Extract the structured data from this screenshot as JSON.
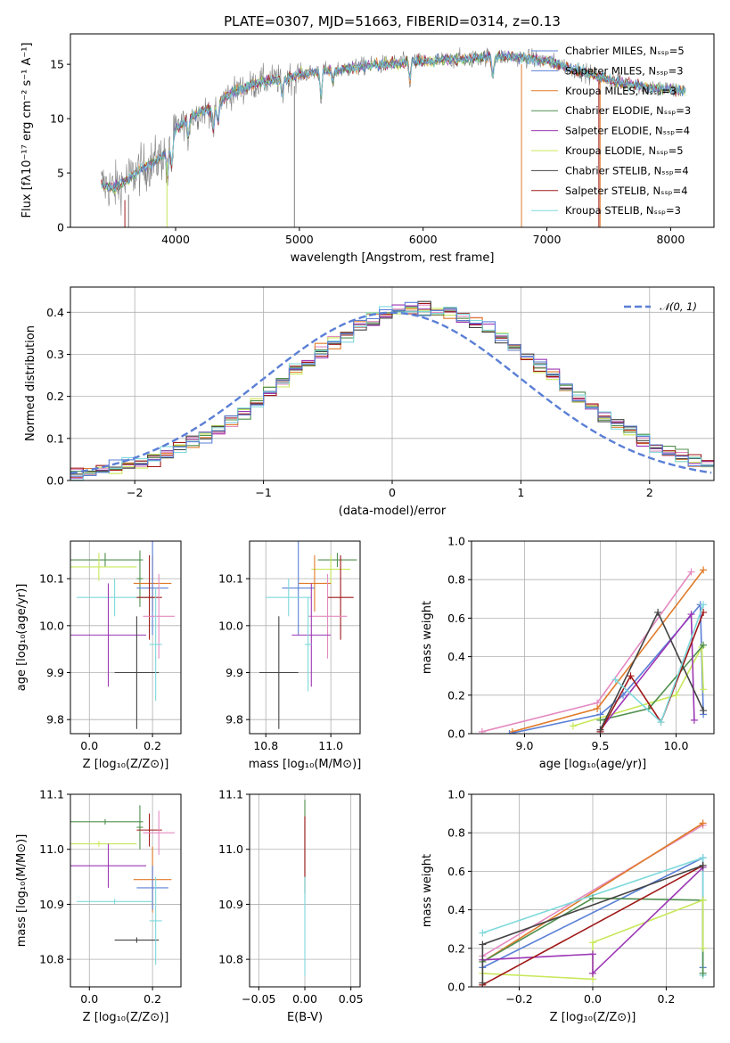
{
  "colors": {
    "blue": "#5a7fd6",
    "orange": "#e07b2a",
    "green": "#4f8f4f",
    "red": "#a01818",
    "purple": "#9c36b5",
    "brown": "#8c5a3c",
    "pink": "#e48ac0",
    "gray": "#7f7f7f",
    "olive": "#c8e85a",
    "cyan": "#7fd9dc",
    "dark": "#444444"
  },
  "chart_data": [
    {
      "id": "spectrum",
      "type": "line",
      "title": "PLATE=0307, MJD=51663, FIBERID=0314, z=0.13",
      "xlabel": "wavelength [Angstrom, rest frame]",
      "ylabel": "Flux [fλ10⁻¹⁷ erg cm⁻² s⁻¹ A⁻¹]",
      "xlim": [
        3150,
        8350
      ],
      "ylim": [
        0,
        17.8
      ],
      "xticks": [
        4000,
        5000,
        6000,
        7000,
        8000
      ],
      "yticks": [
        0,
        5,
        10,
        15
      ],
      "legend_position": "top-right",
      "legend": [
        {
          "label": "Chabrier MILES, Nₛₛₚ=5",
          "color": "#5a7fd6"
        },
        {
          "label": "Salpeter MILES, Nₛₛₚ=3",
          "color": "#5a7fd6"
        },
        {
          "label": "Kroupa MILES, Nₛₛₚ=3",
          "color": "#e07b2a"
        },
        {
          "label": "Chabrier ELODIE, Nₛₛₚ=3",
          "color": "#4f8f4f"
        },
        {
          "label": "Salpeter ELODIE, Nₛₛₚ=4",
          "color": "#9c36b5"
        },
        {
          "label": "Kroupa ELODIE, Nₛₛₚ=5",
          "color": "#c8e85a"
        },
        {
          "label": "Chabrier STELIB, Nₛₛₚ=4",
          "color": "#444444"
        },
        {
          "label": "Salpeter STELIB, Nₛₛₚ=4",
          "color": "#a01818"
        },
        {
          "label": "Kroupa STELIB, Nₛₛₚ=3",
          "color": "#7fd9dc"
        }
      ],
      "continuum": [
        [
          3400,
          4.0
        ],
        [
          3500,
          3.6
        ],
        [
          3600,
          4.3
        ],
        [
          3700,
          5.2
        ],
        [
          3800,
          5.8
        ],
        [
          3900,
          6.6
        ],
        [
          4000,
          9.0
        ],
        [
          4100,
          10.0
        ],
        [
          4200,
          10.6
        ],
        [
          4300,
          11.0
        ],
        [
          4400,
          12.0
        ],
        [
          4500,
          12.6
        ],
        [
          4600,
          13.0
        ],
        [
          4700,
          13.4
        ],
        [
          4800,
          13.6
        ],
        [
          4900,
          13.7
        ],
        [
          5000,
          14.1
        ],
        [
          5100,
          14.2
        ],
        [
          5200,
          14.4
        ],
        [
          5300,
          14.5
        ],
        [
          5400,
          14.6
        ],
        [
          5500,
          14.8
        ],
        [
          5600,
          14.9
        ],
        [
          5700,
          15.0
        ],
        [
          5800,
          15.1
        ],
        [
          5900,
          15.3
        ],
        [
          6000,
          15.2
        ],
        [
          6100,
          15.3
        ],
        [
          6200,
          15.4
        ],
        [
          6300,
          15.5
        ],
        [
          6400,
          15.5
        ],
        [
          6500,
          15.7
        ],
        [
          6600,
          15.7
        ],
        [
          6700,
          15.7
        ],
        [
          6800,
          15.6
        ],
        [
          6900,
          15.5
        ],
        [
          7000,
          15.3
        ],
        [
          7100,
          15.0
        ],
        [
          7200,
          14.6
        ],
        [
          7300,
          14.3
        ],
        [
          7400,
          13.9
        ],
        [
          7500,
          13.6
        ],
        [
          7600,
          13.3
        ],
        [
          7700,
          13.1
        ],
        [
          7800,
          12.9
        ],
        [
          7900,
          12.8
        ],
        [
          8000,
          12.7
        ],
        [
          8100,
          12.6
        ]
      ],
      "absorption_features": [
        [
          3934,
          3.2
        ],
        [
          3969,
          2.9
        ],
        [
          4101,
          1.8
        ],
        [
          4304,
          2.4
        ],
        [
          4341,
          1.8
        ],
        [
          4861,
          1.6
        ],
        [
          5175,
          2.4
        ],
        [
          5270,
          1.2
        ],
        [
          5893,
          1.8
        ],
        [
          6563,
          1.9
        ]
      ]
    },
    {
      "id": "residuals",
      "type": "histogram",
      "xlabel": "(data-model)/error",
      "ylabel": "Normed distribution",
      "xlim": [
        -2.5,
        2.5
      ],
      "ylim": [
        0,
        0.46
      ],
      "xticks": [
        -2,
        -1,
        0,
        1,
        2
      ],
      "yticks": [
        0.0,
        0.1,
        0.2,
        0.3,
        0.4
      ],
      "legend_position": "top-right",
      "legend": [
        {
          "label": "𝒩(0, 1)",
          "color": "#5a7fd6"
        }
      ],
      "bin_width": 0.1
    },
    {
      "id": "age-vs-z",
      "type": "errorbar",
      "xlabel": "Z [log₁₀(Z/Z⊙)]",
      "ylabel": "age  [log₁₀(age/yr)]",
      "xlim": [
        -0.06,
        0.29
      ],
      "ylim": [
        9.77,
        10.18
      ],
      "xticks": [
        0.0,
        0.2
      ],
      "yticks": [
        9.8,
        9.9,
        10.0,
        10.1
      ],
      "points": [
        {
          "color": "#4f8f4f",
          "x": 0.05,
          "xerr": 0.12,
          "y": 10.14,
          "yerr": 0.015
        },
        {
          "color": "#c8e85a",
          "x": 0.03,
          "xerr": 0.12,
          "y": 10.125,
          "yerr": 0.03
        },
        {
          "color": "#4f8f4f",
          "x": 0.16,
          "xerr": 0.01,
          "y": 10.1,
          "yerr": 0.06
        },
        {
          "color": "#e07b2a",
          "x": 0.2,
          "xerr": 0.06,
          "y": 10.09,
          "yerr": 0.06
        },
        {
          "color": "#5a7fd6",
          "x": 0.2,
          "xerr": 0.05,
          "y": 10.08,
          "yerr": 0.1
        },
        {
          "color": "#7fd9dc",
          "x": 0.08,
          "xerr": 0.12,
          "y": 10.06,
          "yerr": 0.04
        },
        {
          "color": "#a01818",
          "x": 0.19,
          "xerr": 0.04,
          "y": 10.06,
          "yerr": 0.09
        },
        {
          "color": "#e48ac0",
          "x": 0.22,
          "xerr": 0.05,
          "y": 10.02,
          "yerr": 0.09
        },
        {
          "color": "#9c36b5",
          "x": 0.06,
          "xerr": 0.12,
          "y": 9.98,
          "yerr": 0.11
        },
        {
          "color": "#444444",
          "x": 0.15,
          "xerr": 0.07,
          "y": 9.9,
          "yerr": 0.12
        },
        {
          "color": "#7fd9dc",
          "x": 0.21,
          "xerr": 0.02,
          "y": 9.96,
          "yerr": 0.12
        }
      ]
    },
    {
      "id": "age-vs-mass",
      "type": "errorbar",
      "xlabel": "mass [log₁₀(M/M⊙)]",
      "ylabel": "",
      "xlim": [
        10.75,
        11.09
      ],
      "ylim": [
        9.77,
        10.18
      ],
      "xticks": [
        10.8,
        11.0
      ],
      "yticks": [
        9.8,
        9.9,
        10.0,
        10.1
      ],
      "points": [
        {
          "color": "#4f8f4f",
          "x": 11.02,
          "xerr": 0.06,
          "y": 10.14,
          "yerr": 0.015
        },
        {
          "color": "#c8e85a",
          "x": 11.0,
          "xerr": 0.06,
          "y": 10.12,
          "yerr": 0.03
        },
        {
          "color": "#e07b2a",
          "x": 10.95,
          "xerr": 0.05,
          "y": 10.09,
          "yerr": 0.06
        },
        {
          "color": "#5a7fd6",
          "x": 10.9,
          "xerr": 0.05,
          "y": 10.08,
          "yerr": 0.1
        },
        {
          "color": "#7fd9dc",
          "x": 10.87,
          "xerr": 0.07,
          "y": 10.06,
          "yerr": 0.04
        },
        {
          "color": "#a01818",
          "x": 11.03,
          "xerr": 0.04,
          "y": 10.06,
          "yerr": 0.09
        },
        {
          "color": "#e48ac0",
          "x": 10.99,
          "xerr": 0.06,
          "y": 10.02,
          "yerr": 0.09
        },
        {
          "color": "#9c36b5",
          "x": 10.94,
          "xerr": 0.06,
          "y": 9.98,
          "yerr": 0.11
        },
        {
          "color": "#444444",
          "x": 10.84,
          "xerr": 0.06,
          "y": 9.9,
          "yerr": 0.12
        },
        {
          "color": "#7fd9dc",
          "x": 10.93,
          "xerr": 0.01,
          "y": 9.96,
          "yerr": 0.1
        }
      ]
    },
    {
      "id": "weight-vs-age",
      "type": "line",
      "xlabel": "age  [log₁₀(age/yr)]",
      "ylabel": "mass weight",
      "xlim": [
        8.65,
        10.25
      ],
      "ylim": [
        0,
        1
      ],
      "xticks": [
        9.0,
        9.5,
        10.0
      ],
      "yticks": [
        0.0,
        0.2,
        0.4,
        0.6,
        0.8,
        1.0
      ],
      "grid": true,
      "series": [
        {
          "color": "#e48ac0",
          "x": [
            8.72,
            9.48,
            10.1
          ],
          "y": [
            0.01,
            0.16,
            0.84
          ]
        },
        {
          "color": "#e07b2a",
          "x": [
            8.92,
            9.48,
            10.18
          ],
          "y": [
            0.01,
            0.13,
            0.85
          ]
        },
        {
          "color": "#5a7fd6",
          "x": [
            8.9,
            9.5,
            9.65,
            10.16,
            10.18
          ],
          "y": [
            0.0,
            0.1,
            0.2,
            0.67,
            0.1
          ]
        },
        {
          "color": "#c8e85a",
          "x": [
            9.32,
            10.0,
            10.17,
            10.18
          ],
          "y": [
            0.04,
            0.2,
            0.45,
            0.23
          ]
        },
        {
          "color": "#4f8f4f",
          "x": [
            9.5,
            9.82,
            10.18
          ],
          "y": [
            0.07,
            0.13,
            0.46
          ]
        },
        {
          "color": "#9c36b5",
          "x": [
            9.5,
            10.1,
            10.12
          ],
          "y": [
            0.02,
            0.62,
            0.07
          ]
        },
        {
          "color": "#a01818",
          "x": [
            9.5,
            9.7,
            9.9,
            10.18
          ],
          "y": [
            0.01,
            0.3,
            0.06,
            0.63
          ]
        },
        {
          "color": "#444444",
          "x": [
            9.5,
            9.88,
            10.18
          ],
          "y": [
            0.02,
            0.63,
            0.12
          ]
        },
        {
          "color": "#7fd9dc",
          "x": [
            9.6,
            9.9,
            10.18
          ],
          "y": [
            0.28,
            0.06,
            0.67
          ]
        }
      ]
    },
    {
      "id": "mass-vs-z",
      "type": "errorbar",
      "xlabel": "Z [log₁₀(Z/Z⊙)]",
      "ylabel": "mass [log₁₀(M/M⊙)]",
      "xlim": [
        -0.06,
        0.29
      ],
      "ylim": [
        10.75,
        11.1
      ],
      "xticks": [
        0.0,
        0.2
      ],
      "yticks": [
        10.8,
        10.9,
        11.0,
        11.1
      ],
      "points": [
        {
          "color": "#4f8f4f",
          "x": 0.05,
          "xerr": 0.12,
          "y": 11.05,
          "yerr": 0.005
        },
        {
          "color": "#c8e85a",
          "x": 0.03,
          "xerr": 0.12,
          "y": 11.01,
          "yerr": 0.005
        },
        {
          "color": "#4f8f4f",
          "x": 0.16,
          "xerr": 0.01,
          "y": 11.04,
          "yerr": 0.04
        },
        {
          "color": "#a01818",
          "x": 0.19,
          "xerr": 0.04,
          "y": 11.035,
          "yerr": 0.03
        },
        {
          "color": "#e48ac0",
          "x": 0.22,
          "xerr": 0.05,
          "y": 11.03,
          "yerr": 0.04
        },
        {
          "color": "#9c36b5",
          "x": 0.06,
          "xerr": 0.12,
          "y": 10.97,
          "yerr": 0.04
        },
        {
          "color": "#e07b2a",
          "x": 0.2,
          "xerr": 0.06,
          "y": 10.945,
          "yerr": 0.06
        },
        {
          "color": "#5a7fd6",
          "x": 0.2,
          "xerr": 0.05,
          "y": 10.93,
          "yerr": 0.04
        },
        {
          "color": "#7fd9dc",
          "x": 0.08,
          "xerr": 0.12,
          "y": 10.905,
          "yerr": 0.005
        },
        {
          "color": "#444444",
          "x": 0.15,
          "xerr": 0.07,
          "y": 10.835,
          "yerr": 0.005
        },
        {
          "color": "#7fd9dc",
          "x": 0.21,
          "xerr": 0.02,
          "y": 10.87,
          "yerr": 0.08
        }
      ]
    },
    {
      "id": "mass-vs-ebv",
      "type": "errorbar",
      "xlabel": "E(B-V)",
      "ylabel": "",
      "xlim": [
        -0.06,
        0.06
      ],
      "ylim": [
        10.75,
        11.1
      ],
      "xticks": [
        -0.05,
        0.0,
        0.05
      ],
      "yticks": [
        10.8,
        10.9,
        11.0,
        11.1
      ],
      "points": [
        {
          "color": "#4f8f4f",
          "x": 0.0,
          "xerr": 0.0,
          "y": 11.0,
          "yerr": 0.09
        },
        {
          "color": "#a01818",
          "x": 0.0,
          "xerr": 0.0,
          "y": 10.99,
          "yerr": 0.07
        },
        {
          "color": "#7fd9dc",
          "x": 0.0,
          "xerr": 0.0,
          "y": 10.86,
          "yerr": 0.09
        }
      ]
    },
    {
      "id": "weight-vs-z",
      "type": "line",
      "xlabel": "Z [log₁₀(Z/Z⊙)]",
      "ylabel": "mass weight",
      "xlim": [
        -0.33,
        0.33
      ],
      "ylim": [
        0,
        1
      ],
      "xticks": [
        -0.2,
        0.0,
        0.2
      ],
      "yticks": [
        0.0,
        0.2,
        0.4,
        0.6,
        0.8,
        1.0
      ],
      "grid": true,
      "series": [
        {
          "color": "#e48ac0",
          "x": [
            -0.3,
            0.3
          ],
          "y": [
            0.16,
            0.84
          ]
        },
        {
          "color": "#e07b2a",
          "x": [
            -0.3,
            0.3
          ],
          "y": [
            0.13,
            0.85
          ]
        },
        {
          "color": "#5a7fd6",
          "x": [
            -0.3,
            0.3,
            0.3
          ],
          "y": [
            0.1,
            0.67,
            0.1
          ]
        },
        {
          "color": "#7fd9dc",
          "x": [
            -0.3,
            0.3,
            0.3
          ],
          "y": [
            0.28,
            0.67,
            0.06
          ]
        },
        {
          "color": "#4f8f4f",
          "x": [
            -0.3,
            0.0,
            0.3,
            0.3
          ],
          "y": [
            0.13,
            0.46,
            0.45,
            0.07
          ]
        },
        {
          "color": "#c8e85a",
          "x": [
            -0.3,
            0.0,
            0.0,
            0.3,
            0.3
          ],
          "y": [
            0.07,
            0.04,
            0.23,
            0.45,
            0.2
          ]
        },
        {
          "color": "#9c36b5",
          "x": [
            -0.3,
            0.0,
            0.0,
            0.3
          ],
          "y": [
            0.14,
            0.17,
            0.07,
            0.62
          ]
        },
        {
          "color": "#a01818",
          "x": [
            -0.3,
            0.3
          ],
          "y": [
            0.01,
            0.63
          ]
        },
        {
          "color": "#444444",
          "x": [
            -0.3,
            -0.3,
            0.3
          ],
          "y": [
            0.02,
            0.22,
            0.63
          ]
        }
      ]
    }
  ]
}
